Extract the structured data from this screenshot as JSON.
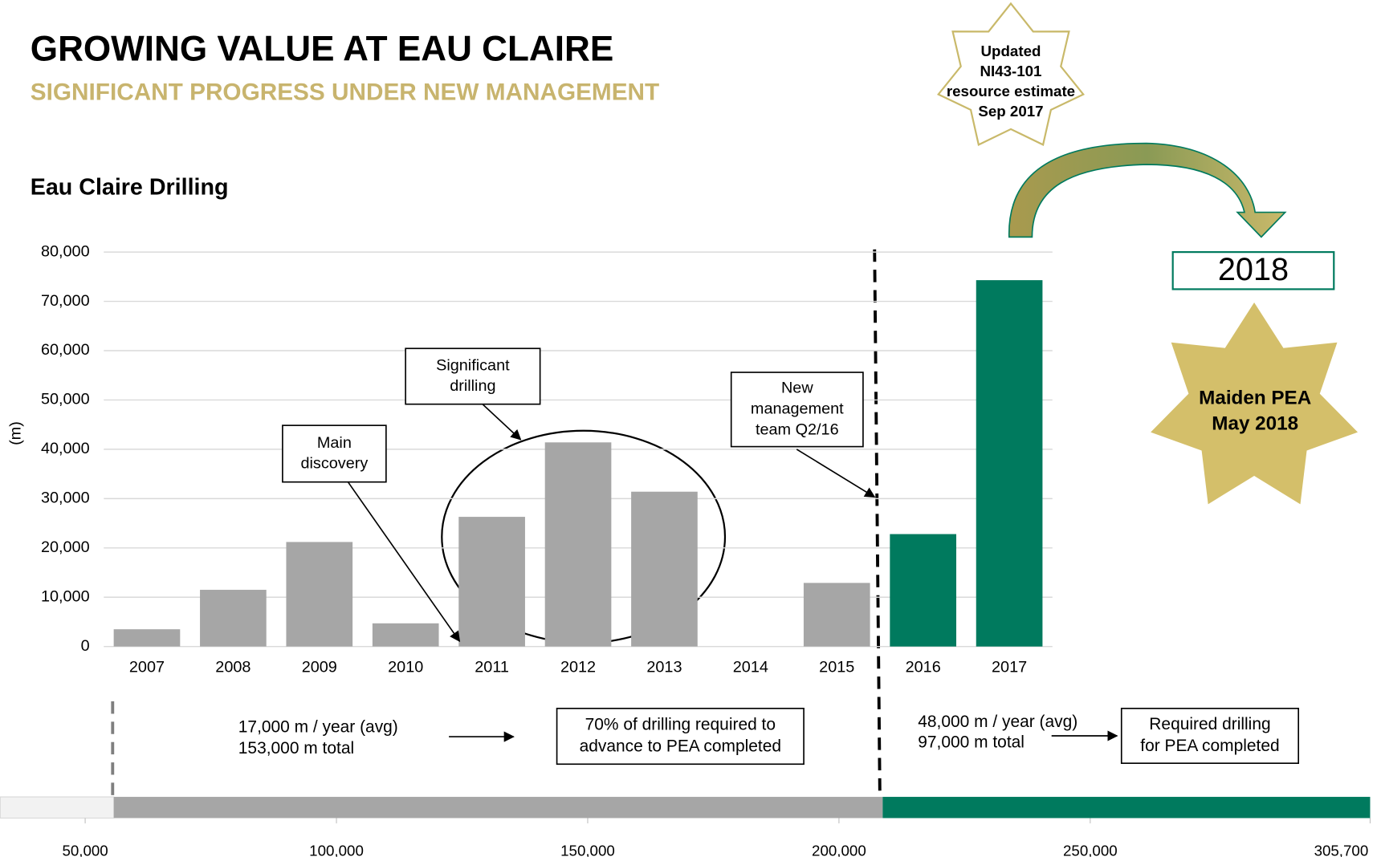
{
  "header": {
    "title": "GROWING VALUE AT EAU CLAIRE",
    "subtitle": "SIGNIFICANT PROGRESS UNDER NEW MANAGEMENT"
  },
  "chart_data": {
    "type": "bar",
    "title": "Eau Claire Drilling",
    "y_label": "(m)",
    "categories": [
      "2007",
      "2008",
      "2009",
      "2010",
      "2011",
      "2012",
      "2013",
      "2014",
      "2015",
      "2016",
      "2017"
    ],
    "values": [
      3500,
      11500,
      21200,
      4700,
      26300,
      41400,
      31400,
      0,
      12900,
      22800,
      74300
    ],
    "colors": [
      "#a6a6a6",
      "#a6a6a6",
      "#a6a6a6",
      "#a6a6a6",
      "#a6a6a6",
      "#a6a6a6",
      "#a6a6a6",
      "#a6a6a6",
      "#a6a6a6",
      "#007a5e",
      "#007a5e"
    ],
    "ylim": [
      0,
      80000
    ],
    "yticks": [
      0,
      {
        "value": 10000,
        "label": "10,000"
      },
      {
        "value": 20000,
        "label": "20,000"
      },
      {
        "value": 30000,
        "label": "30,000"
      },
      {
        "value": 40000,
        "label": "40,000"
      },
      {
        "value": 50000,
        "label": "50,000"
      },
      {
        "value": 60000,
        "label": "60,000"
      },
      {
        "value": 70000,
        "label": "70,000"
      },
      {
        "value": 80000,
        "label": "80,000"
      }
    ],
    "grid": true,
    "annotations": [
      {
        "lines": [
          "Significant",
          "drilling"
        ]
      },
      {
        "lines": [
          "Main",
          "discovery"
        ]
      },
      {
        "lines": [
          "New",
          "management",
          "team Q2/16"
        ]
      }
    ]
  },
  "timeline": {
    "type": "bar",
    "orientation": "horizontal",
    "values": [
      55700,
      153000,
      97000
    ],
    "colors": [
      "#f2f2f2",
      "#a6a6a6",
      "#007a5e"
    ],
    "xlim": [
      33100,
      305700
    ],
    "xticks": [
      {
        "value": 50000,
        "label": "50,000"
      },
      {
        "value": 100000,
        "label": "100,000"
      },
      {
        "value": 150000,
        "label": "150,000"
      },
      {
        "value": 200000,
        "label": "200,000"
      },
      {
        "value": 250000,
        "label": "250,000"
      },
      {
        "value": 305700,
        "label": "305,700"
      }
    ],
    "notes": [
      {
        "lines": [
          "17,000 m / year (avg)",
          "153,000 m total"
        ]
      },
      {
        "lines": [
          "70% of drilling required to",
          "advance to PEA completed"
        ]
      },
      {
        "lines": [
          "48,000 m / year (avg)",
          "97,000 m total"
        ]
      },
      {
        "lines": [
          "Required drilling",
          "for PEA completed"
        ]
      }
    ]
  },
  "milestones": {
    "resource": {
      "lines": [
        "Updated",
        "NI43-101",
        "resource estimate",
        "Sep 2017"
      ]
    },
    "year": "2018",
    "pea": {
      "lines": [
        "Maiden PEA",
        "May 2018"
      ]
    }
  }
}
